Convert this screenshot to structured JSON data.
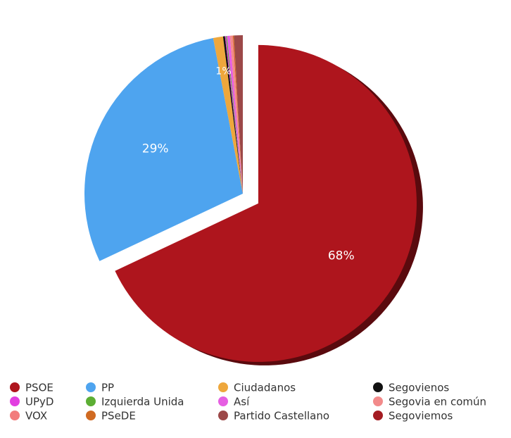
{
  "chart_data": {
    "type": "pie",
    "categories": [
      "PSOE",
      "PP",
      "Ciudadanos",
      "Segovienos",
      "UPyD",
      "Izquierda Unida",
      "Así",
      "Segovia en común",
      "VOX",
      "PSeDE",
      "Partido Castellano",
      "Segoviemos"
    ],
    "values": [
      68,
      29,
      1,
      0.2,
      0.1,
      0.1,
      0.3,
      0.2,
      0.1,
      0.1,
      0.9,
      0
    ],
    "value_labels": [
      "68%",
      "29%",
      "1%",
      null,
      null,
      null,
      null,
      null,
      null,
      null,
      null,
      null
    ],
    "colors": [
      "#ae151d",
      "#4ea4ef",
      "#eea73c",
      "#111111",
      "#e23ee0",
      "#5cae34",
      "#e65fe2",
      "#f28a8a",
      "#f27c7c",
      "#d06a22",
      "#9c4848",
      "#a41c22"
    ],
    "exploded": "PSOE",
    "legend": "bottom"
  }
}
